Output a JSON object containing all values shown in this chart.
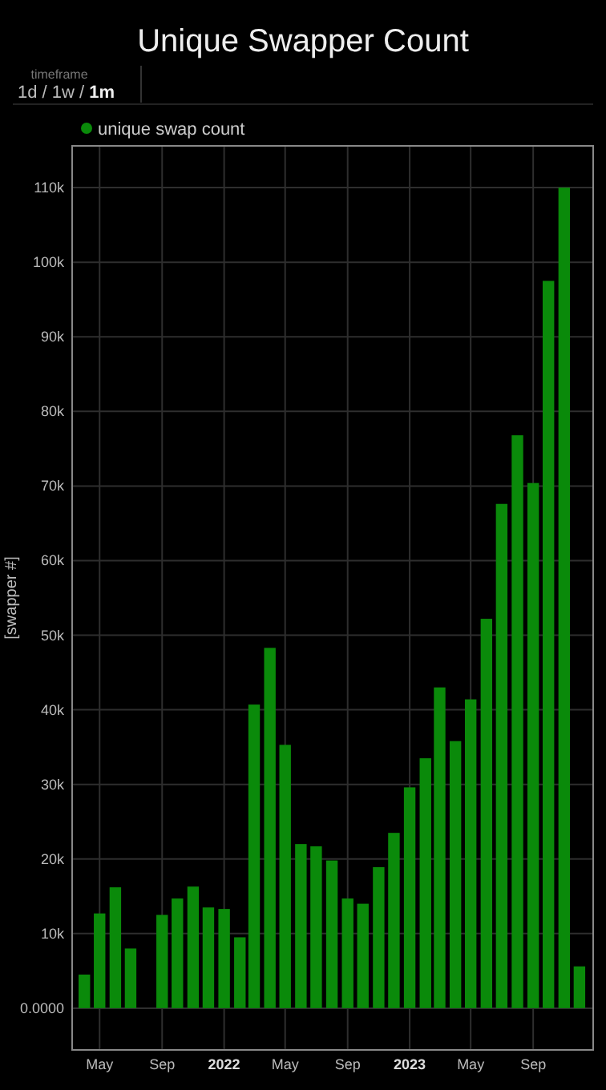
{
  "chart_data": {
    "type": "bar",
    "title": "Unique Swapper Count",
    "ylabel": "[swapper #]",
    "annotations": [
      "timeframe",
      "1d / 1w / ",
      "1m"
    ],
    "x": [
      "2021-04",
      "2021-05",
      "2021-06",
      "2021-07",
      "2021-08",
      "2021-09",
      "2021-10",
      "2021-11",
      "2021-12",
      "2022-01",
      "2022-02",
      "2022-03",
      "2022-04",
      "2022-05",
      "2022-06",
      "2022-07",
      "2022-08",
      "2022-09",
      "2022-10",
      "2022-11",
      "2022-12",
      "2023-01",
      "2023-02",
      "2023-03",
      "2023-04",
      "2023-05",
      "2023-06",
      "2023-07",
      "2023-08",
      "2023-09",
      "2023-10",
      "2023-11",
      "2023-12"
    ],
    "series": [
      {
        "name": "unique swap count",
        "color": "#0a8a0a",
        "values": [
          4500,
          12700,
          16200,
          8000,
          null,
          12500,
          14700,
          16300,
          13500,
          13300,
          9500,
          40700,
          48300,
          35300,
          22000,
          21700,
          19800,
          14700,
          14000,
          18900,
          23500,
          29600,
          33500,
          43000,
          35800,
          41400,
          52200,
          67600,
          76800,
          70400,
          97500,
          110000,
          5600
        ]
      }
    ],
    "xlim": [
      "2021-03-08",
      "2023-12-28"
    ],
    "xticks": [
      {
        "value": "2021-05",
        "label": "May"
      },
      {
        "value": "2021-09",
        "label": "Sep"
      },
      {
        "value": "2022-01",
        "label": "2022"
      },
      {
        "value": "2022-05",
        "label": "May"
      },
      {
        "value": "2022-09",
        "label": "Sep"
      },
      {
        "value": "2023-01",
        "label": "2023"
      },
      {
        "value": "2023-05",
        "label": "May"
      },
      {
        "value": "2023-09",
        "label": "Sep"
      }
    ],
    "ylim": [
      -5600,
      115600
    ],
    "yticks": [
      {
        "value": 0,
        "label": "0.0000"
      },
      {
        "value": 10000,
        "label": "10k"
      },
      {
        "value": 20000,
        "label": "20k"
      },
      {
        "value": 30000,
        "label": "30k"
      },
      {
        "value": 40000,
        "label": "40k"
      },
      {
        "value": 50000,
        "label": "50k"
      },
      {
        "value": 60000,
        "label": "60k"
      },
      {
        "value": 70000,
        "label": "70k"
      },
      {
        "value": 80000,
        "label": "80k"
      },
      {
        "value": 90000,
        "label": "90k"
      },
      {
        "value": 100000,
        "label": "100k"
      },
      {
        "value": 110000,
        "label": "110k"
      }
    ],
    "grid": true,
    "legend": "top left"
  }
}
